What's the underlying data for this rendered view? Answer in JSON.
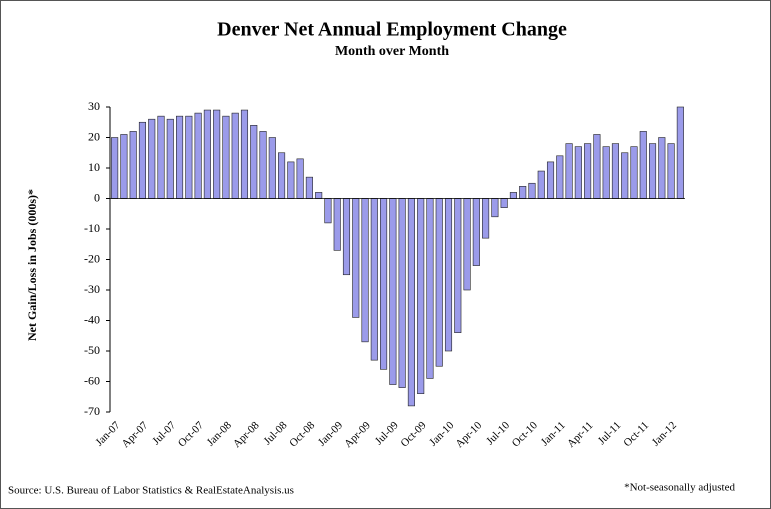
{
  "chart_data": {
    "type": "bar",
    "title": "Denver Net Annual Employment Change",
    "subtitle": "Month over Month",
    "y_label": "Net Gain/Loss in Jobs (000s)*",
    "source": "Source: U.S. Bureau of Labor Statistics & RealEstateAnalysis.us",
    "note": "*Not-seasonally adjusted",
    "color": "#9b9bea",
    "categories": [
      "Jan-07",
      null,
      null,
      "Apr-07",
      null,
      null,
      "Jul-07",
      null,
      null,
      "Oct-07",
      null,
      null,
      "Jan-08",
      null,
      null,
      "Apr-08",
      null,
      null,
      "Jul-08",
      null,
      null,
      "Oct-08",
      null,
      null,
      "Jan-09",
      null,
      null,
      "Apr-09",
      null,
      null,
      "Jul-09",
      null,
      null,
      "Oct-09",
      null,
      null,
      "Jan-10",
      null,
      null,
      "Apr-10",
      null,
      null,
      "Jul-10",
      null,
      null,
      "Oct-10",
      null,
      null,
      "Jan-11",
      null,
      null,
      "Apr-11",
      null,
      null,
      "Jul-11",
      null,
      null,
      "Oct-11",
      null,
      null,
      "Jan-12",
      null
    ],
    "values": [
      20,
      21,
      22,
      25,
      26,
      27,
      26,
      27,
      27,
      28,
      29,
      29,
      27,
      28,
      29,
      24,
      22,
      20,
      15,
      12,
      13,
      7,
      2,
      -8,
      -17,
      -25,
      -39,
      -47,
      -53,
      -56,
      -61,
      -62,
      -68,
      -64,
      -59,
      -55,
      -50,
      -44,
      -30,
      -22,
      -13,
      -6,
      -3,
      2,
      4,
      5,
      9,
      12,
      14,
      18,
      17,
      18,
      21,
      17,
      18,
      15,
      17,
      22,
      18,
      20,
      18,
      30
    ],
    "ylim": [
      -70,
      30
    ],
    "yticks": [
      -70,
      -60,
      -50,
      -40,
      -30,
      -20,
      -10,
      0,
      10,
      20,
      30
    ]
  }
}
